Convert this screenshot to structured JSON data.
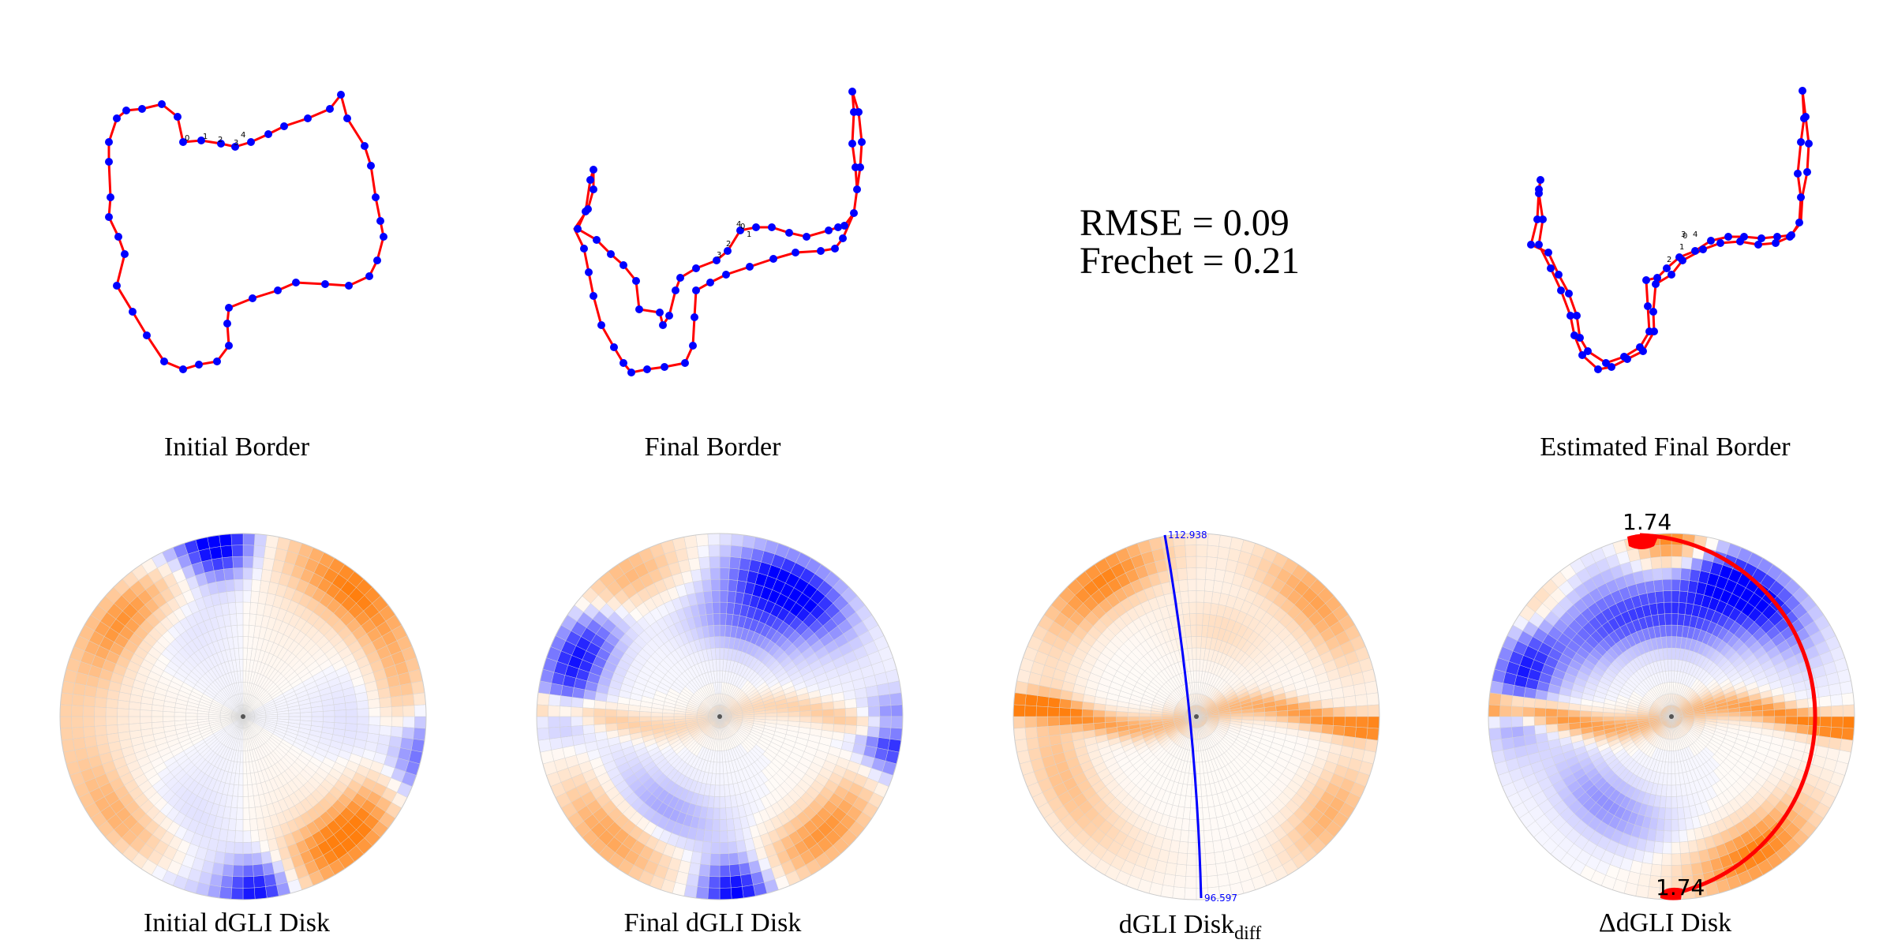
{
  "panels": {
    "initial_border": {
      "caption": "Initial Border"
    },
    "final_border": {
      "caption": "Final Border"
    },
    "estimated_final_border": {
      "caption": "Estimated Final Border"
    },
    "initial_disk": {
      "caption": "Initial dGLI Disk"
    },
    "final_disk": {
      "caption": "Final dGLI Disk"
    },
    "diff_disk": {
      "caption_main": "dGLI Disk",
      "caption_sub": "diff",
      "top_value": "112.938",
      "bottom_value": "96.597"
    },
    "delta_disk": {
      "caption": "ΔdGLI Disk",
      "top_value": "1.74",
      "bottom_value": "1.74"
    }
  },
  "metrics": {
    "rmse": "RMSE = 0.09",
    "frechet": "Frechet = 0.21"
  },
  "point_labels": {
    "initial": [
      "0",
      "1",
      "2",
      "3",
      "4"
    ],
    "final": [
      "0",
      "1",
      "2",
      "3",
      "4"
    ],
    "estimated": [
      "0",
      "1",
      "2",
      "3",
      "4"
    ]
  },
  "colors": {
    "curve": "#ff0000",
    "points": "#0000ff",
    "positive": "#ff7f0e",
    "negative": "#0000ff",
    "annotation": "#0000ff",
    "arc": "#ff0000"
  }
}
